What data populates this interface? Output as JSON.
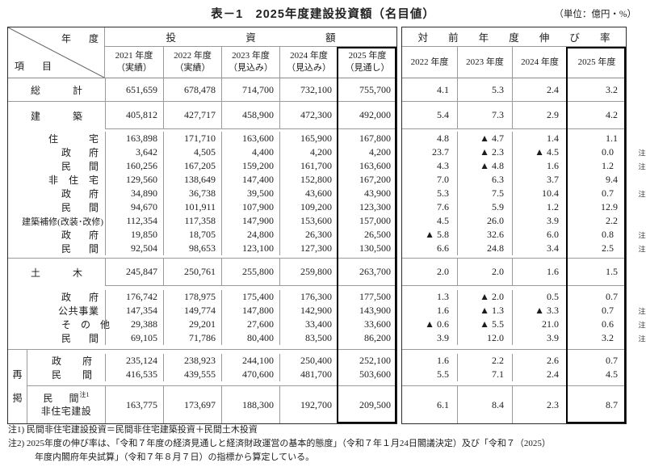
{
  "title": "表－1　2025年度建設投資額（名目値）",
  "unit_label": "（単位：億円・%）",
  "corner": {
    "top": "年　度",
    "bottom": "項　目"
  },
  "investment_header": {
    "group": "投　資　額",
    "years": [
      [
        "2021 年度",
        "（実績）"
      ],
      [
        "2022 年度",
        "（実績）"
      ],
      [
        "2023 年度",
        "（見込み）"
      ],
      [
        "2024 年度",
        "（見込み）"
      ],
      [
        "2025 年度",
        "（見通し）"
      ]
    ]
  },
  "growth_header": {
    "group": "対　前　年　度　伸　び　率",
    "years": [
      "2022 年度",
      "2023 年度",
      "2024 年度",
      "2025 年度"
    ]
  },
  "saikei_label": "再掲",
  "sections": [
    {
      "kind": "single",
      "rows": [
        {
          "label": "総　計",
          "style": "main",
          "inv": [
            "651,659",
            "678,478",
            "714,700",
            "732,100",
            "755,700"
          ],
          "growth": [
            "4.1",
            "5.3",
            "2.4",
            "3.2"
          ],
          "note": ""
        }
      ]
    },
    {
      "kind": "group",
      "parent": {
        "label": "建　築",
        "style": "main",
        "inv": [
          "405,812",
          "427,717",
          "458,900",
          "472,300",
          "492,000"
        ],
        "growth": [
          "5.4",
          "7.3",
          "2.9",
          "4.2"
        ],
        "note": ""
      },
      "children": [
        {
          "label": "住　宅",
          "style": "s1",
          "inv": [
            "163,898",
            "171,710",
            "163,600",
            "165,900",
            "167,800"
          ],
          "growth": [
            "4.8",
            "▲ 4.7",
            "1.4",
            "1.1"
          ],
          "note": ""
        },
        {
          "label": "政　府",
          "style": "s2",
          "inv": [
            "3,642",
            "4,505",
            "4,400",
            "4,200",
            "4,200"
          ],
          "growth": [
            "23.7",
            "▲ 2.3",
            "▲ 4.5",
            "0.0"
          ],
          "note": "注2"
        },
        {
          "label": "民　間",
          "style": "s2",
          "inv": [
            "160,256",
            "167,205",
            "159,200",
            "161,700",
            "163,600"
          ],
          "growth": [
            "4.3",
            "▲ 4.8",
            "1.6",
            "1.2"
          ],
          "note": "注2"
        },
        {
          "label": "非　住　宅",
          "style": "s1",
          "inv": [
            "129,560",
            "138,649",
            "147,400",
            "152,800",
            "167,200"
          ],
          "growth": [
            "7.0",
            "6.3",
            "3.7",
            "9.4"
          ],
          "note": ""
        },
        {
          "label": "政　府",
          "style": "s2",
          "inv": [
            "34,890",
            "36,738",
            "39,500",
            "43,600",
            "43,900"
          ],
          "growth": [
            "5.3",
            "7.5",
            "10.4",
            "0.7"
          ],
          "note": "注2"
        },
        {
          "label": "民　間",
          "style": "s2",
          "inv": [
            "94,670",
            "101,911",
            "107,900",
            "109,200",
            "123,300"
          ],
          "growth": [
            "7.6",
            "5.9",
            "1.2",
            "12.9"
          ],
          "note": ""
        },
        {
          "label": "建築補修(改装･改修)",
          "style": "wide",
          "inv": [
            "112,354",
            "117,358",
            "147,900",
            "153,600",
            "157,000"
          ],
          "growth": [
            "4.5",
            "26.0",
            "3.9",
            "2.2"
          ],
          "note": ""
        },
        {
          "label": "政　府",
          "style": "s2",
          "inv": [
            "19,850",
            "18,705",
            "24,800",
            "26,300",
            "26,500"
          ],
          "growth": [
            "▲ 5.8",
            "32.6",
            "6.0",
            "0.8"
          ],
          "note": "注2"
        },
        {
          "label": "民　間",
          "style": "s2",
          "inv": [
            "92,504",
            "98,653",
            "123,100",
            "127,300",
            "130,500"
          ],
          "growth": [
            "6.6",
            "24.8",
            "3.4",
            "2.5"
          ],
          "note": "注2"
        }
      ]
    },
    {
      "kind": "group",
      "parent": {
        "label": "土　木",
        "style": "main",
        "inv": [
          "245,847",
          "250,761",
          "255,800",
          "259,800",
          "263,700"
        ],
        "growth": [
          "2.0",
          "2.0",
          "1.6",
          "1.5"
        ],
        "note": ""
      },
      "children": [
        {
          "label": "政　府",
          "style": "s2",
          "inv": [
            "176,742",
            "178,975",
            "175,400",
            "176,300",
            "177,500"
          ],
          "growth": [
            "1.3",
            "▲ 2.0",
            "0.5",
            "0.7"
          ],
          "note": ""
        },
        {
          "label": "公共事業",
          "style": "s3",
          "inv": [
            "147,354",
            "149,774",
            "147,800",
            "142,900",
            "143,900"
          ],
          "growth": [
            "1.6",
            "▲ 1.3",
            "▲ 3.3",
            "0.7"
          ],
          "note": "注2"
        },
        {
          "label": "そ　の　他",
          "style": "s3b",
          "inv": [
            "29,388",
            "29,201",
            "27,600",
            "33,400",
            "33,600"
          ],
          "growth": [
            "▲ 0.6",
            "▲ 5.5",
            "21.0",
            "0.6"
          ],
          "note": "注2"
        },
        {
          "label": "民　間",
          "style": "s2",
          "inv": [
            "69,105",
            "71,786",
            "80,400",
            "83,500",
            "86,200"
          ],
          "growth": [
            "3.9",
            "12.0",
            "3.9",
            "3.2"
          ],
          "note": "注2"
        }
      ]
    },
    {
      "kind": "saikei",
      "box1": [
        {
          "label": "政　府",
          "style": "s2w",
          "inv": [
            "235,124",
            "238,923",
            "244,100",
            "250,400",
            "252,100"
          ],
          "growth": [
            "1.6",
            "2.2",
            "2.6",
            "0.7"
          ],
          "note": ""
        },
        {
          "label": "民　間",
          "style": "s2w",
          "inv": [
            "416,535",
            "439,555",
            "470,600",
            "481,700",
            "503,600"
          ],
          "growth": [
            "5.5",
            "7.1",
            "2.4",
            "4.5"
          ],
          "note": ""
        }
      ],
      "box2": [
        {
          "label": "民　間",
          "sup": "注1",
          "label2": "非住宅建設",
          "style": "cap",
          "inv": [
            "163,775",
            "173,697",
            "188,300",
            "192,700",
            "209,500"
          ],
          "growth": [
            "6.1",
            "8.4",
            "2.3",
            "8.7"
          ],
          "note": ""
        }
      ]
    }
  ],
  "notes": [
    "注1) 民間非住宅建設投資＝民間非住宅建築投資＋民間土木投資",
    "注2) 2025年度の伸び率は、「令和７年度の経済見通しと経済財政運営の基本的態度」（令和７年１月24日閣議決定）及び「令和７（2025）",
    "年度内閣府年央試算」（令和７年８月７日）の指標から算定している。"
  ]
}
